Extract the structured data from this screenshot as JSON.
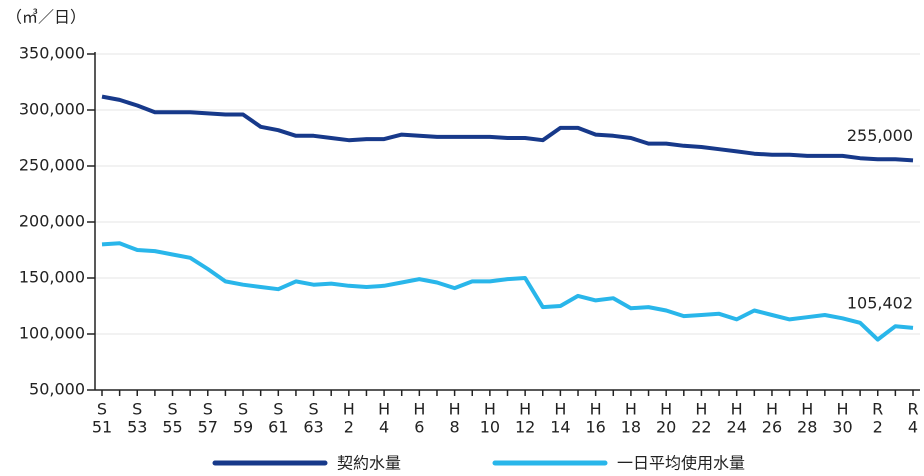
{
  "chart_data": {
    "type": "line",
    "unit": "（㎥／日）",
    "categories": [
      [
        "S",
        "51"
      ],
      null,
      [
        "S",
        "53"
      ],
      null,
      [
        "S",
        "55"
      ],
      null,
      [
        "S",
        "57"
      ],
      null,
      [
        "S",
        "59"
      ],
      null,
      [
        "S",
        "61"
      ],
      null,
      [
        "S",
        "63"
      ],
      null,
      [
        "H",
        "2"
      ],
      null,
      [
        "H",
        "4"
      ],
      null,
      [
        "H",
        "6"
      ],
      null,
      [
        "H",
        "8"
      ],
      null,
      [
        "H",
        "10"
      ],
      null,
      [
        "H",
        "12"
      ],
      null,
      [
        "H",
        "14"
      ],
      null,
      [
        "H",
        "16"
      ],
      null,
      [
        "H",
        "18"
      ],
      null,
      [
        "H",
        "20"
      ],
      null,
      [
        "H",
        "22"
      ],
      null,
      [
        "H",
        "24"
      ],
      null,
      [
        "H",
        "26"
      ],
      null,
      [
        "H",
        "28"
      ],
      null,
      [
        "H",
        "30"
      ],
      null,
      [
        "R",
        "2"
      ],
      null,
      [
        "R",
        "4"
      ]
    ],
    "series": [
      {
        "name": "契約水量",
        "color": "#17398a",
        "values": [
          312000,
          309000,
          304000,
          298000,
          298000,
          298000,
          297000,
          296000,
          296000,
          285000,
          282000,
          277000,
          277000,
          275000,
          273000,
          274000,
          274000,
          278000,
          277000,
          276000,
          276000,
          276000,
          276000,
          275000,
          275000,
          273000,
          284000,
          284000,
          278000,
          277000,
          275000,
          270000,
          270000,
          268000,
          267000,
          265000,
          263000,
          261000,
          260000,
          260000,
          259000,
          259000,
          259000,
          257000,
          256000,
          256000,
          255000
        ],
        "value_labels": [
          null,
          null,
          null,
          null,
          null,
          null,
          null,
          null,
          null,
          null,
          null,
          null,
          null,
          null,
          null,
          null,
          null,
          null,
          null,
          null,
          null,
          null,
          null,
          null,
          null,
          null,
          null,
          null,
          null,
          null,
          null,
          null,
          null,
          null,
          null,
          null,
          null,
          null,
          null,
          null,
          null,
          null,
          null,
          null,
          null,
          null,
          "255,000"
        ]
      },
      {
        "name": "一日平均使用水量",
        "color": "#29b6ea",
        "values": [
          180000,
          181000,
          175000,
          174000,
          171000,
          168000,
          158000,
          147000,
          144000,
          142000,
          140000,
          147000,
          144000,
          145000,
          143000,
          142000,
          143000,
          146000,
          149000,
          146000,
          141000,
          147000,
          147000,
          149000,
          150000,
          124000,
          125000,
          134000,
          130000,
          132000,
          123000,
          124000,
          121000,
          116000,
          117000,
          118000,
          113000,
          121000,
          117000,
          113000,
          115000,
          117000,
          114000,
          110000,
          95000,
          107000,
          105402
        ],
        "value_labels": [
          null,
          null,
          null,
          null,
          null,
          null,
          null,
          null,
          null,
          null,
          null,
          null,
          null,
          null,
          null,
          null,
          null,
          null,
          null,
          null,
          null,
          null,
          null,
          null,
          null,
          null,
          null,
          null,
          null,
          null,
          null,
          null,
          null,
          null,
          null,
          null,
          null,
          null,
          null,
          null,
          null,
          null,
          null,
          null,
          null,
          null,
          "105,402"
        ]
      }
    ],
    "ylim": [
      50000,
      350000
    ],
    "yticks": [
      {
        "value": 50000,
        "label": "50,000"
      },
      {
        "value": 100000,
        "label": "100,000"
      },
      {
        "value": 150000,
        "label": "150,000"
      },
      {
        "value": 200000,
        "label": "200,000"
      },
      {
        "value": 250000,
        "label": "250,000"
      },
      {
        "value": 300000,
        "label": "300,000"
      },
      {
        "value": 350000,
        "label": "350,000"
      }
    ],
    "grid": true,
    "legend": "bottom"
  }
}
